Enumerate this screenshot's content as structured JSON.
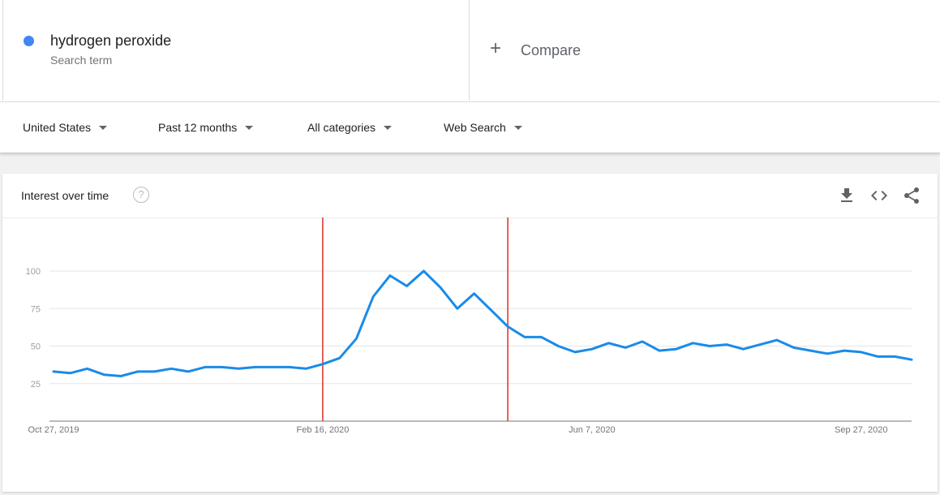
{
  "term": {
    "name": "hydrogen peroxide",
    "subtitle": "Search term",
    "color": "#4285f4"
  },
  "compare": {
    "label": "Compare",
    "icon": "plus-icon"
  },
  "filters": [
    {
      "label": "United States"
    },
    {
      "label": "Past 12 months"
    },
    {
      "label": "All categories"
    },
    {
      "label": "Web Search"
    }
  ],
  "card": {
    "title": "Interest over time",
    "icons": [
      "help-icon",
      "download-icon",
      "embed-icon",
      "share-icon"
    ]
  },
  "chart_data": {
    "type": "line",
    "title": "Interest over time",
    "x_start": "2019-10-27",
    "x_end": "2020-10-18",
    "x_tick_labels": [
      "Oct 27, 2019",
      "Feb 16, 2020",
      "Jun 7, 2020",
      "Sep 27, 2020"
    ],
    "y_ticks": [
      25,
      50,
      75,
      100
    ],
    "ylim": [
      0,
      100
    ],
    "grid": true,
    "series": [
      {
        "name": "hydrogen peroxide",
        "color": "#1a8be8",
        "dates": [
          "2019-10-27",
          "2019-11-03",
          "2019-11-10",
          "2019-11-17",
          "2019-11-24",
          "2019-12-01",
          "2019-12-08",
          "2019-12-15",
          "2019-12-22",
          "2019-12-29",
          "2020-01-05",
          "2020-01-12",
          "2020-01-19",
          "2020-01-26",
          "2020-02-02",
          "2020-02-09",
          "2020-02-16",
          "2020-02-23",
          "2020-03-01",
          "2020-03-08",
          "2020-03-15",
          "2020-03-22",
          "2020-03-29",
          "2020-04-05",
          "2020-04-12",
          "2020-04-19",
          "2020-04-26",
          "2020-05-03",
          "2020-05-10",
          "2020-05-17",
          "2020-05-24",
          "2020-05-31",
          "2020-06-07",
          "2020-06-14",
          "2020-06-21",
          "2020-06-28",
          "2020-07-05",
          "2020-07-12",
          "2020-07-19",
          "2020-07-26",
          "2020-08-02",
          "2020-08-09",
          "2020-08-16",
          "2020-08-23",
          "2020-08-30",
          "2020-09-06",
          "2020-09-13",
          "2020-09-20",
          "2020-09-27",
          "2020-10-04",
          "2020-10-11",
          "2020-10-18"
        ],
        "values": [
          33,
          32,
          35,
          31,
          30,
          33,
          33,
          35,
          33,
          36,
          36,
          35,
          36,
          36,
          36,
          35,
          38,
          42,
          55,
          83,
          97,
          90,
          100,
          89,
          75,
          85,
          74,
          63,
          56,
          56,
          50,
          46,
          48,
          52,
          49,
          53,
          47,
          48,
          52,
          50,
          51,
          48,
          51,
          54,
          49,
          47,
          45,
          47,
          46,
          43,
          43,
          41
        ]
      }
    ],
    "annotations": [
      {
        "type": "vertical-line",
        "date": "2020-02-16",
        "color": "#d93025"
      },
      {
        "type": "vertical-line",
        "date": "2020-05-03",
        "color": "#d93025"
      }
    ]
  }
}
